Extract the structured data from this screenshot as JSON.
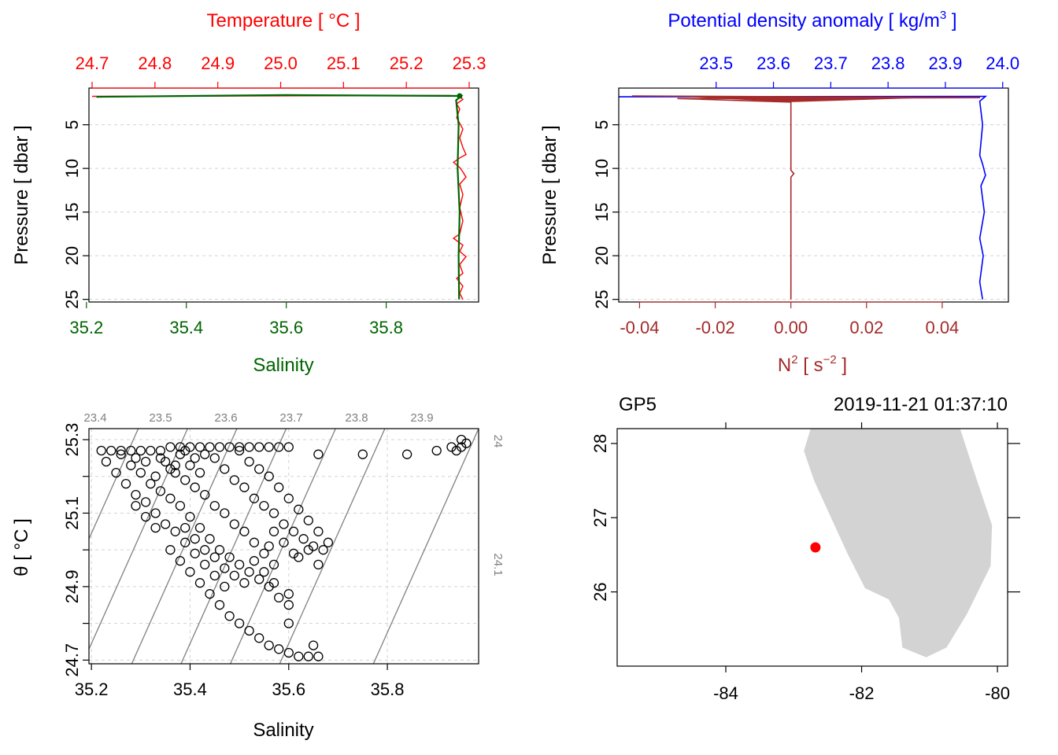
{
  "colors": {
    "temperature": "#ff0000",
    "salinity": "#006400",
    "density": "#0000ff",
    "n2": "#a52a2a",
    "grid": "#d3d3d3",
    "isopycnal": "#808080",
    "land": "#d3d3d3",
    "station": "#ff0000"
  },
  "chart_data": [
    {
      "type": "line",
      "panel": "temperature-salinity-profile",
      "title": "",
      "top_axis_label": "Temperature [ °C ]",
      "bottom_axis_label": "Salinity",
      "ylabel": "Pressure [ dbar ]",
      "top_ticks": [
        "24.7",
        "24.8",
        "24.9",
        "25.0",
        "25.1",
        "25.2",
        "25.3"
      ],
      "bottom_ticks": [
        "35.2",
        "35.4",
        "35.6",
        "35.8"
      ],
      "y_ticks": [
        "5",
        "10",
        "15",
        "20",
        "25"
      ],
      "temperature_lim": [
        24.695,
        25.315
      ],
      "salinity_lim": [
        35.205,
        35.985
      ],
      "ylim": [
        25.3,
        0.8
      ],
      "y_reversed": true,
      "grid": true,
      "series": [
        {
          "name": "Temperature",
          "axis": "top",
          "points": [
            [
              24.7,
              1.75
            ],
            [
              25.27,
              1.65
            ],
            [
              25.285,
              1.75
            ],
            [
              25.29,
              2.1
            ],
            [
              25.28,
              2.6
            ],
            [
              25.285,
              3.2
            ],
            [
              25.28,
              4.2
            ],
            [
              25.29,
              5.5
            ],
            [
              25.285,
              6.5
            ],
            [
              25.29,
              7.6
            ],
            [
              25.295,
              8.4
            ],
            [
              25.285,
              8.8
            ],
            [
              25.275,
              9.3
            ],
            [
              25.285,
              9.9
            ],
            [
              25.29,
              10.4
            ],
            [
              25.295,
              11.0
            ],
            [
              25.285,
              11.8
            ],
            [
              25.29,
              13.0
            ],
            [
              25.285,
              14.5
            ],
            [
              25.29,
              16.0
            ],
            [
              25.285,
              17.5
            ],
            [
              25.275,
              18.0
            ],
            [
              25.29,
              18.8
            ],
            [
              25.285,
              19.5
            ],
            [
              25.295,
              20.1
            ],
            [
              25.285,
              21.0
            ],
            [
              25.29,
              22.0
            ],
            [
              25.28,
              22.6
            ],
            [
              25.29,
              23.5
            ],
            [
              25.285,
              24.3
            ],
            [
              25.29,
              25.0
            ]
          ]
        },
        {
          "name": "Salinity",
          "axis": "bottom",
          "points": [
            [
              35.22,
              1.8
            ],
            [
              35.6,
              1.6
            ],
            [
              35.95,
              1.7
            ],
            [
              35.94,
              2.2
            ],
            [
              35.945,
              5
            ],
            [
              35.943,
              10
            ],
            [
              35.947,
              15
            ],
            [
              35.945,
              20
            ],
            [
              35.946,
              25
            ]
          ]
        }
      ]
    },
    {
      "type": "line",
      "panel": "density-n2-profile",
      "title": "",
      "top_axis_label": "Potential density anomaly [ kg/m",
      "top_axis_label_sup": "3",
      "top_axis_label_tail": " ]",
      "bottom_axis_label": "N",
      "bottom_axis_label_sup": "2",
      "bottom_axis_label_mid": " [ s",
      "bottom_axis_label_sup2": "−2",
      "bottom_axis_label_tail": " ]",
      "ylabel": "Pressure [ dbar ]",
      "top_ticks": [
        "23.5",
        "23.6",
        "23.7",
        "23.8",
        "23.9",
        "24.0"
      ],
      "bottom_ticks": [
        "-0.04",
        "-0.02",
        "0.00",
        "0.02",
        "0.04"
      ],
      "y_ticks": [
        "5",
        "10",
        "15",
        "20",
        "25"
      ],
      "density_lim": [
        23.33,
        24.01
      ],
      "n2_lim": [
        -0.0455,
        0.0575
      ],
      "ylim": [
        25.3,
        0.8
      ],
      "y_reversed": true,
      "grid": true,
      "series": [
        {
          "name": "Potential density anomaly",
          "axis": "top",
          "points": [
            [
              23.33,
              1.8
            ],
            [
              23.97,
              1.75
            ],
            [
              23.96,
              2.3
            ],
            [
              23.965,
              5
            ],
            [
              23.96,
              8.5
            ],
            [
              23.965,
              9.5
            ],
            [
              23.97,
              10.8
            ],
            [
              23.962,
              12
            ],
            [
              23.968,
              15
            ],
            [
              23.96,
              18
            ],
            [
              23.966,
              20
            ],
            [
              23.96,
              23
            ],
            [
              23.965,
              25
            ]
          ]
        },
        {
          "name": "N2",
          "axis": "bottom",
          "points": [
            [
              -0.042,
              1.7
            ],
            [
              0.05,
              1.9
            ],
            [
              -0.03,
              2.0
            ],
            [
              0.0,
              2.4
            ],
            [
              0.0,
              10.2
            ],
            [
              0.0008,
              10.6
            ],
            [
              0.0,
              11
            ],
            [
              0.0,
              25
            ]
          ]
        }
      ]
    },
    {
      "type": "scatter",
      "panel": "ts-diagram",
      "title": "",
      "xlabel": "Salinity",
      "ylabel": "θ [ °C ]",
      "x_ticks": [
        "35.2",
        "35.4",
        "35.6",
        "35.8"
      ],
      "y_ticks": [
        "24.7",
        "24.9",
        "25.1",
        "25.3"
      ],
      "xlim": [
        35.195,
        35.985
      ],
      "ylim": [
        24.69,
        25.33
      ],
      "grid": true,
      "isopycnal_labels": [
        "23.4",
        "23.5",
        "23.6",
        "23.7",
        "23.8",
        "23.9",
        "24",
        "24.1"
      ],
      "points": [
        [
          35.22,
          25.27
        ],
        [
          35.24,
          25.27
        ],
        [
          35.26,
          25.27
        ],
        [
          35.28,
          25.27
        ],
        [
          35.3,
          25.27
        ],
        [
          35.32,
          25.27
        ],
        [
          35.34,
          25.27
        ],
        [
          35.36,
          25.28
        ],
        [
          35.38,
          25.28
        ],
        [
          35.4,
          25.28
        ],
        [
          35.42,
          25.28
        ],
        [
          35.44,
          25.28
        ],
        [
          35.46,
          25.28
        ],
        [
          35.48,
          25.28
        ],
        [
          35.5,
          25.28
        ],
        [
          35.52,
          25.28
        ],
        [
          35.54,
          25.28
        ],
        [
          35.56,
          25.28
        ],
        [
          35.58,
          25.28
        ],
        [
          35.6,
          25.28
        ],
        [
          35.66,
          25.26
        ],
        [
          35.75,
          25.26
        ],
        [
          35.84,
          25.26
        ],
        [
          35.9,
          25.27
        ],
        [
          35.93,
          25.28
        ],
        [
          35.95,
          25.3
        ],
        [
          35.96,
          25.29
        ],
        [
          35.94,
          25.27
        ],
        [
          35.95,
          25.28
        ],
        [
          35.23,
          25.24
        ],
        [
          35.25,
          25.21
        ],
        [
          35.27,
          25.18
        ],
        [
          35.29,
          25.15
        ],
        [
          35.31,
          25.13
        ],
        [
          35.33,
          25.1
        ],
        [
          35.35,
          25.07
        ],
        [
          35.37,
          25.05
        ],
        [
          35.39,
          25.02
        ],
        [
          35.41,
          24.99
        ],
        [
          35.43,
          24.96
        ],
        [
          35.45,
          24.93
        ],
        [
          35.47,
          24.9
        ],
        [
          35.26,
          25.26
        ],
        [
          35.28,
          25.23
        ],
        [
          35.3,
          25.21
        ],
        [
          35.32,
          25.18
        ],
        [
          35.34,
          25.16
        ],
        [
          35.36,
          25.14
        ],
        [
          35.38,
          25.12
        ],
        [
          35.4,
          25.09
        ],
        [
          35.42,
          25.06
        ],
        [
          35.44,
          25.03
        ],
        [
          35.46,
          25.0
        ],
        [
          35.48,
          24.98
        ],
        [
          35.5,
          24.96
        ],
        [
          35.52,
          24.94
        ],
        [
          35.54,
          24.92
        ],
        [
          35.56,
          24.9
        ],
        [
          35.58,
          24.87
        ],
        [
          35.6,
          24.85
        ],
        [
          35.45,
          25.25
        ],
        [
          35.47,
          25.22
        ],
        [
          35.49,
          25.19
        ],
        [
          35.51,
          25.17
        ],
        [
          35.53,
          25.14
        ],
        [
          35.55,
          25.12
        ],
        [
          35.57,
          25.1
        ],
        [
          35.59,
          25.07
        ],
        [
          35.61,
          25.05
        ],
        [
          35.63,
          25.03
        ],
        [
          35.65,
          25.01
        ],
        [
          35.67,
          25.0
        ],
        [
          35.5,
          25.27
        ],
        [
          35.52,
          25.24
        ],
        [
          35.54,
          25.22
        ],
        [
          35.56,
          25.2
        ],
        [
          35.58,
          25.17
        ],
        [
          35.6,
          25.14
        ],
        [
          35.62,
          25.11
        ],
        [
          35.64,
          25.08
        ],
        [
          35.66,
          25.05
        ],
        [
          35.68,
          25.02
        ],
        [
          35.36,
          25.0
        ],
        [
          35.38,
          24.97
        ],
        [
          35.4,
          24.94
        ],
        [
          35.42,
          24.91
        ],
        [
          35.44,
          24.88
        ],
        [
          35.46,
          24.85
        ],
        [
          35.48,
          24.82
        ],
        [
          35.5,
          24.8
        ],
        [
          35.52,
          24.78
        ],
        [
          35.54,
          24.76
        ],
        [
          35.56,
          24.74
        ],
        [
          35.58,
          24.73
        ],
        [
          35.6,
          24.72
        ],
        [
          35.62,
          24.71
        ],
        [
          35.64,
          24.71
        ],
        [
          35.66,
          24.71
        ],
        [
          35.65,
          24.74
        ],
        [
          35.6,
          24.8
        ],
        [
          35.6,
          24.88
        ],
        [
          35.35,
          25.24
        ],
        [
          35.37,
          25.21
        ],
        [
          35.39,
          25.19
        ],
        [
          35.41,
          25.17
        ],
        [
          35.43,
          25.15
        ],
        [
          35.45,
          25.12
        ],
        [
          35.47,
          25.1
        ],
        [
          35.49,
          25.07
        ],
        [
          35.51,
          25.05
        ],
        [
          35.53,
          25.02
        ],
        [
          35.55,
          24.99
        ],
        [
          35.57,
          24.96
        ],
        [
          35.38,
          25.26
        ],
        [
          35.4,
          25.23
        ],
        [
          35.42,
          25.21
        ],
        [
          35.36,
          25.22
        ],
        [
          35.34,
          25.25
        ],
        [
          35.33,
          25.2
        ],
        [
          35.37,
          25.23
        ],
        [
          35.41,
          25.25
        ],
        [
          35.43,
          25.26
        ],
        [
          35.31,
          25.24
        ],
        [
          35.29,
          25.25
        ],
        [
          35.39,
          25.27
        ],
        [
          35.57,
          25.05
        ],
        [
          35.59,
          25.02
        ],
        [
          35.61,
          24.99
        ],
        [
          35.56,
          25.01
        ],
        [
          35.62,
          24.98
        ],
        [
          35.64,
          25.0
        ],
        [
          35.66,
          24.96
        ],
        [
          35.53,
          24.97
        ],
        [
          35.55,
          24.94
        ],
        [
          35.57,
          24.91
        ],
        [
          35.29,
          25.12
        ],
        [
          35.31,
          25.09
        ],
        [
          35.33,
          25.06
        ],
        [
          35.39,
          25.06
        ],
        [
          35.41,
          25.03
        ],
        [
          35.43,
          25.0
        ],
        [
          35.45,
          24.98
        ],
        [
          35.47,
          24.95
        ],
        [
          35.49,
          24.93
        ],
        [
          35.51,
          24.91
        ]
      ]
    },
    {
      "type": "map",
      "panel": "station-map",
      "station": "GP5",
      "datetime": "2019-11-21 01:37:10",
      "x_ticks": [
        "-84",
        "-82",
        "-80"
      ],
      "y_ticks": [
        "26",
        "27",
        "28"
      ],
      "lon_lim": [
        -85.6,
        -79.85
      ],
      "lat_lim": [
        25.0,
        28.2
      ],
      "station_point": [
        -82.68,
        26.6
      ],
      "land_polygon": [
        [
          -82.75,
          28.2
        ],
        [
          -82.85,
          27.9
        ],
        [
          -82.7,
          27.5
        ],
        [
          -82.45,
          27.0
        ],
        [
          -82.2,
          26.5
        ],
        [
          -81.95,
          26.05
        ],
        [
          -81.6,
          25.9
        ],
        [
          -81.45,
          25.65
        ],
        [
          -81.4,
          25.25
        ],
        [
          -81.05,
          25.12
        ],
        [
          -80.75,
          25.25
        ],
        [
          -80.45,
          25.7
        ],
        [
          -80.1,
          26.35
        ],
        [
          -80.08,
          26.9
        ],
        [
          -80.3,
          27.5
        ],
        [
          -80.55,
          28.2
        ]
      ]
    }
  ]
}
